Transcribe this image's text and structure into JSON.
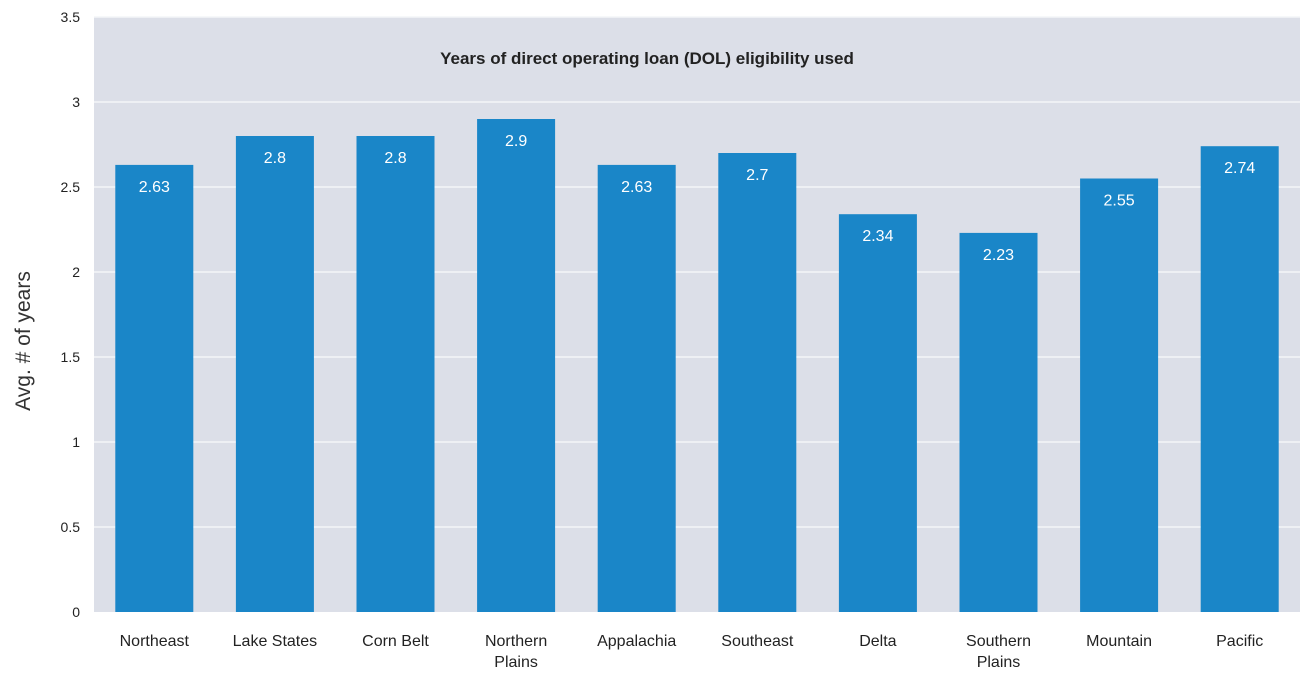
{
  "chart_data": {
    "type": "bar",
    "title": "Years of direct operating loan (DOL) eligibility used",
    "xlabel": "",
    "ylabel": "Avg. # of years",
    "categories": [
      [
        "Northeast"
      ],
      [
        "Lake States"
      ],
      [
        "Corn Belt"
      ],
      [
        "Northern",
        "Plains"
      ],
      [
        "Appalachia"
      ],
      [
        "Southeast"
      ],
      [
        "Delta"
      ],
      [
        "Southern",
        "Plains"
      ],
      [
        "Mountain"
      ],
      [
        "Pacific"
      ]
    ],
    "values": [
      2.63,
      2.8,
      2.8,
      2.9,
      2.63,
      2.7,
      2.34,
      2.23,
      2.55,
      2.74
    ],
    "data_labels": [
      "2.63",
      "2.8",
      "2.8",
      "2.9",
      "2.63",
      "2.7",
      "2.34",
      "2.23",
      "2.55",
      "2.74"
    ],
    "ylim": [
      0,
      3.5
    ],
    "yticks": [
      "0",
      "0.5",
      "1",
      "1.5",
      "2",
      "2.5",
      "3",
      "3.5"
    ],
    "grid": true,
    "legend": "none",
    "colors": {
      "bar": "#1a86c8",
      "plot_background": "#dcdfe8",
      "gridline": "#f4f5f8",
      "data_label": "#ffffff",
      "text": "#222222"
    }
  }
}
